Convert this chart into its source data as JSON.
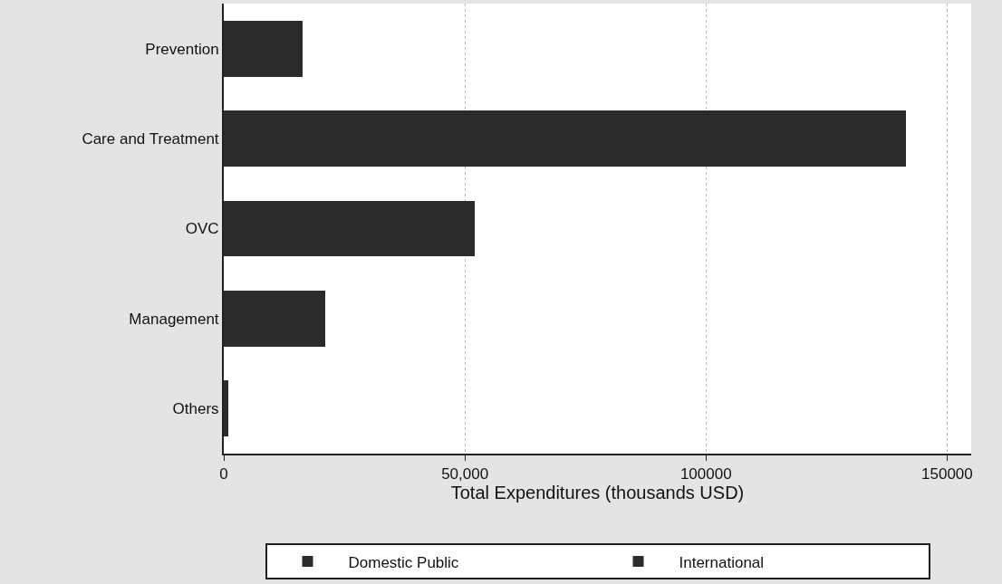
{
  "chart_data": {
    "type": "bar",
    "orientation": "horizontal",
    "stacked": true,
    "xlabel": "Total Expenditures (thousands USD)",
    "categories": [
      "Prevention",
      "Care and Treatment",
      "OVC",
      "Management",
      "Others"
    ],
    "series": [
      {
        "name": "Domestic Public",
        "color": "#2b2b2b",
        "values": [
          16400,
          114700,
          52100,
          21000,
          900
        ]
      },
      {
        "name": "International",
        "color": "#2b2b2b",
        "values": [
          null,
          26700,
          null,
          null,
          null
        ]
      }
    ],
    "xlim": [
      0,
      155000
    ],
    "xticks": [
      0,
      {
        "value": 50000,
        "label": "50,000"
      },
      100000,
      150000
    ],
    "grid": "x",
    "legend": "bottom"
  }
}
